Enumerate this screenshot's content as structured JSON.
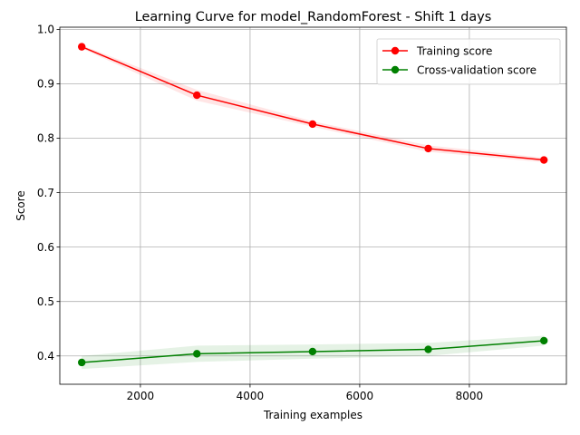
{
  "chart_data": {
    "type": "line",
    "title": "Learning Curve for model_RandomForest - Shift 1 days",
    "xlabel": "Training examples",
    "ylabel": "Score",
    "xlim": [
      530,
      9770
    ],
    "ylim": [
      0.348,
      1.004
    ],
    "xticks": [
      2000,
      4000,
      6000,
      8000
    ],
    "xtick_labels": [
      "2000",
      "4000",
      "6000",
      "8000"
    ],
    "yticks": [
      0.4,
      0.5,
      0.6,
      0.7,
      0.8,
      0.9,
      1.0
    ],
    "ytick_labels": [
      "0.4",
      "0.5",
      "0.6",
      "0.7",
      "0.8",
      "0.9",
      "1.0"
    ],
    "grid": true,
    "legend_position": "top-right",
    "x": [
      930,
      3030,
      5140,
      7250,
      9360
    ],
    "series": [
      {
        "name": "Training score",
        "color": "#ff0000",
        "band_color": "#ff0000",
        "values": [
          0.968,
          0.879,
          0.826,
          0.781,
          0.76
        ],
        "std": [
          0.003,
          0.01,
          0.005,
          0.006,
          0.004
        ]
      },
      {
        "name": "Cross-validation score",
        "color": "#008000",
        "band_color": "#008000",
        "values": [
          0.388,
          0.404,
          0.408,
          0.412,
          0.428
        ],
        "std": [
          0.012,
          0.015,
          0.013,
          0.012,
          0.009
        ]
      }
    ]
  }
}
